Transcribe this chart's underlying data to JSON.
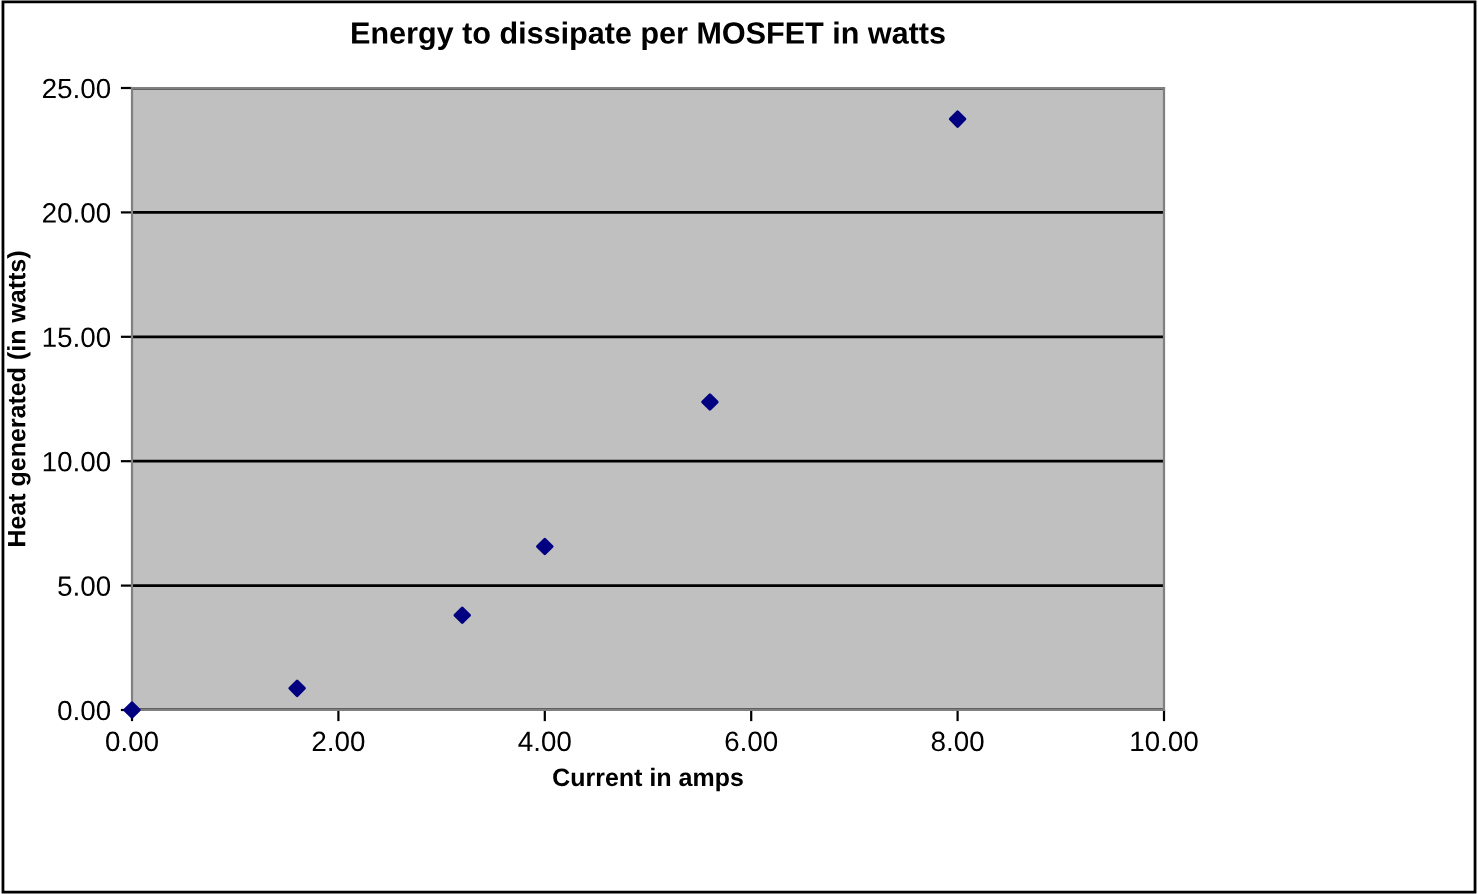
{
  "chart_data": {
    "type": "scatter",
    "title": "Energy to dissipate per MOSFET in watts",
    "xlabel": "Current in amps",
    "ylabel": "Heat generated (in watts)",
    "x": [
      0,
      1.6,
      3.2,
      4.0,
      5.6,
      8.0
    ],
    "series": [
      {
        "color": "#000080",
        "values": [
          0,
          0.87,
          3.81,
          6.57,
          12.38,
          23.75
        ]
      }
    ],
    "xlim": [
      0,
      10
    ],
    "xticks": [
      {
        "value": 0,
        "label": "0.00"
      },
      {
        "value": 2,
        "label": "2.00"
      },
      {
        "value": 4,
        "label": "4.00"
      },
      {
        "value": 6,
        "label": "6.00"
      },
      {
        "value": 8,
        "label": "8.00"
      },
      {
        "value": 10,
        "label": "10.00"
      }
    ],
    "ylim": [
      0,
      25
    ],
    "yticks": [
      {
        "value": 0,
        "label": "0.00"
      },
      {
        "value": 5,
        "label": "5.00"
      },
      {
        "value": 10,
        "label": "10.00"
      },
      {
        "value": 15,
        "label": "15.00"
      },
      {
        "value": 20,
        "label": "20.00"
      },
      {
        "value": 25,
        "label": "25.00"
      }
    ],
    "grid": "y",
    "marker": "diamond",
    "legend": false
  }
}
